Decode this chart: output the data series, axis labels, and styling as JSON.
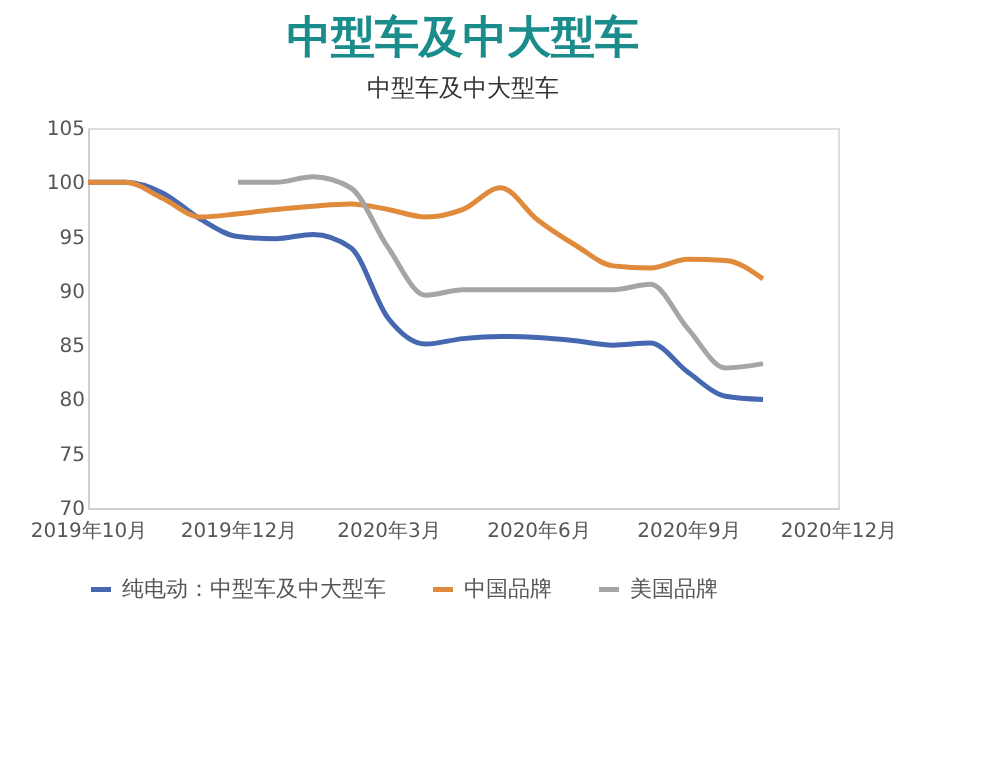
{
  "chart_data": {
    "type": "line",
    "title": "中型车及中大型车",
    "subtitle": "中型车及中大型车",
    "categories": [
      "2019年10月",
      null,
      null,
      null,
      "2019年12月",
      null,
      null,
      null,
      "2020年3月",
      null,
      null,
      null,
      "2020年6月",
      null,
      null,
      null,
      "2020年9月",
      null,
      null,
      null,
      "2020年12月"
    ],
    "ylim": [
      70,
      105
    ],
    "yticks": [
      70,
      75,
      80,
      85,
      90,
      95,
      100,
      105
    ],
    "grid": false,
    "legend": "bottom",
    "marker": "none",
    "line_style": "solid",
    "series": [
      {
        "name": "纯电动：中型车及中大型车",
        "color": "#4668b0",
        "values": [
          100,
          100,
          99,
          96.6,
          95,
          94.8,
          95.2,
          94,
          87.5,
          85.1,
          85.6,
          85.8,
          85.7,
          85.4,
          85,
          85.2,
          82.5,
          80.3,
          80,
          null,
          null
        ]
      },
      {
        "name": "中国品牌",
        "color": "#e08a3c",
        "values": [
          100,
          100,
          98.5,
          96.8,
          97.1,
          97.5,
          97.8,
          98,
          97.5,
          96.8,
          97.5,
          99.5,
          96.5,
          94.2,
          92.3,
          92.1,
          92.9,
          92.8,
          91.1,
          null,
          null
        ]
      },
      {
        "name": "美国品牌",
        "color": "#a5a5a5",
        "values": [
          null,
          null,
          null,
          null,
          100,
          100,
          100.5,
          99.5,
          94,
          89.6,
          90.1,
          90.1,
          90.1,
          90.1,
          90.1,
          90.6,
          86.5,
          82.9,
          83.3,
          null,
          null
        ]
      }
    ]
  }
}
